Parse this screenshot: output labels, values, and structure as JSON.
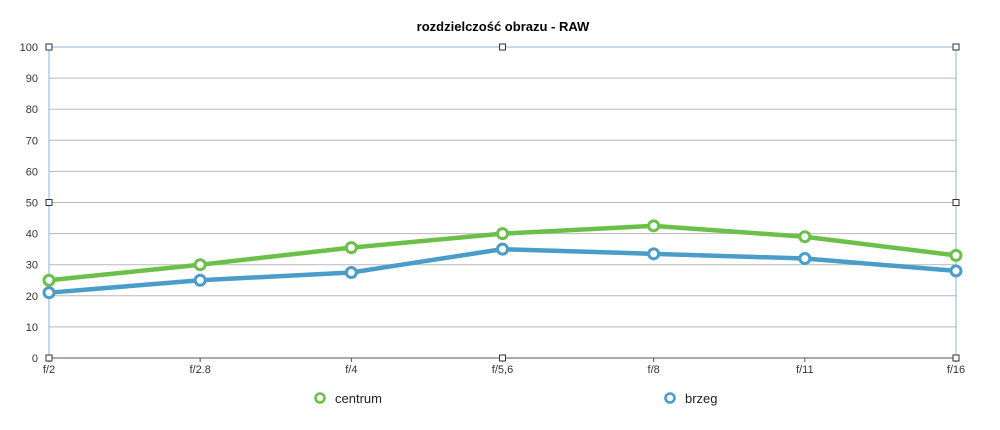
{
  "chart_data": {
    "type": "line",
    "title": "rozdzielczość obrazu - RAW",
    "xlabel": "",
    "ylabel": "",
    "categories": [
      "f/2",
      "f/2.8",
      "f/4",
      "f/5,6",
      "f/8",
      "f/11",
      "f/16"
    ],
    "ylim": [
      0,
      100
    ],
    "yticks": [
      0,
      10,
      20,
      30,
      40,
      50,
      60,
      70,
      80,
      90,
      100
    ],
    "grid": true,
    "legend_position": "bottom",
    "series": [
      {
        "name": "centrum",
        "color": "#6cc04a",
        "values": [
          25,
          30,
          35.5,
          40,
          42.5,
          39,
          33
        ]
      },
      {
        "name": "brzeg",
        "color": "#4a9cc9",
        "values": [
          21,
          25,
          27.5,
          35,
          33.5,
          32,
          28
        ]
      }
    ]
  }
}
